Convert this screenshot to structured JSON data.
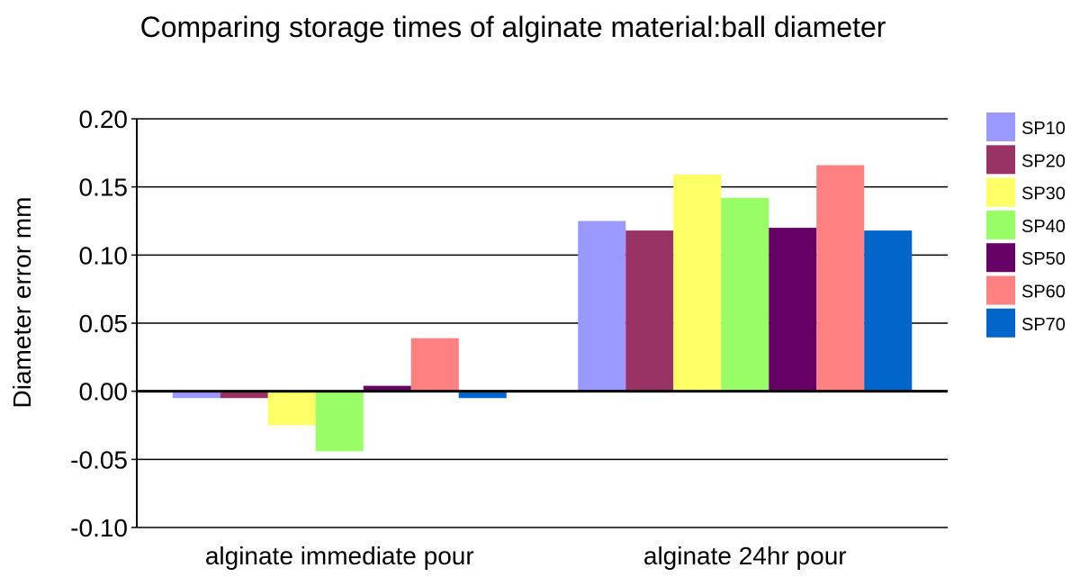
{
  "chart_data": {
    "type": "bar",
    "title": "Comparing storage times of alginate material:ball diameter",
    "xlabel": "",
    "ylabel": "Diameter error mm",
    "ylim": [
      -0.1,
      0.2
    ],
    "yticks": [
      "0.20",
      "0.15",
      "0.10",
      "0.05",
      "0.00",
      "-0.05",
      "-0.10"
    ],
    "ytick_values": [
      0.2,
      0.15,
      0.1,
      0.05,
      0.0,
      -0.05,
      -0.1
    ],
    "grid": true,
    "legend_position": "right",
    "categories": [
      "alginate immediate pour",
      "alginate 24hr pour"
    ],
    "series": [
      {
        "name": "SP10",
        "color": "#9999ff",
        "values": [
          -0.005,
          0.125
        ]
      },
      {
        "name": "SP20",
        "color": "#993366",
        "values": [
          -0.005,
          0.118
        ]
      },
      {
        "name": "SP30",
        "color": "#ffff66",
        "values": [
          -0.025,
          0.159
        ]
      },
      {
        "name": "SP40",
        "color": "#99ff66",
        "values": [
          -0.044,
          0.142
        ]
      },
      {
        "name": "SP50",
        "color": "#660066",
        "values": [
          0.004,
          0.12
        ]
      },
      {
        "name": "SP60",
        "color": "#ff8080",
        "values": [
          0.039,
          0.166
        ]
      },
      {
        "name": "SP70",
        "color": "#0066cc",
        "values": [
          -0.005,
          0.118
        ]
      }
    ]
  }
}
